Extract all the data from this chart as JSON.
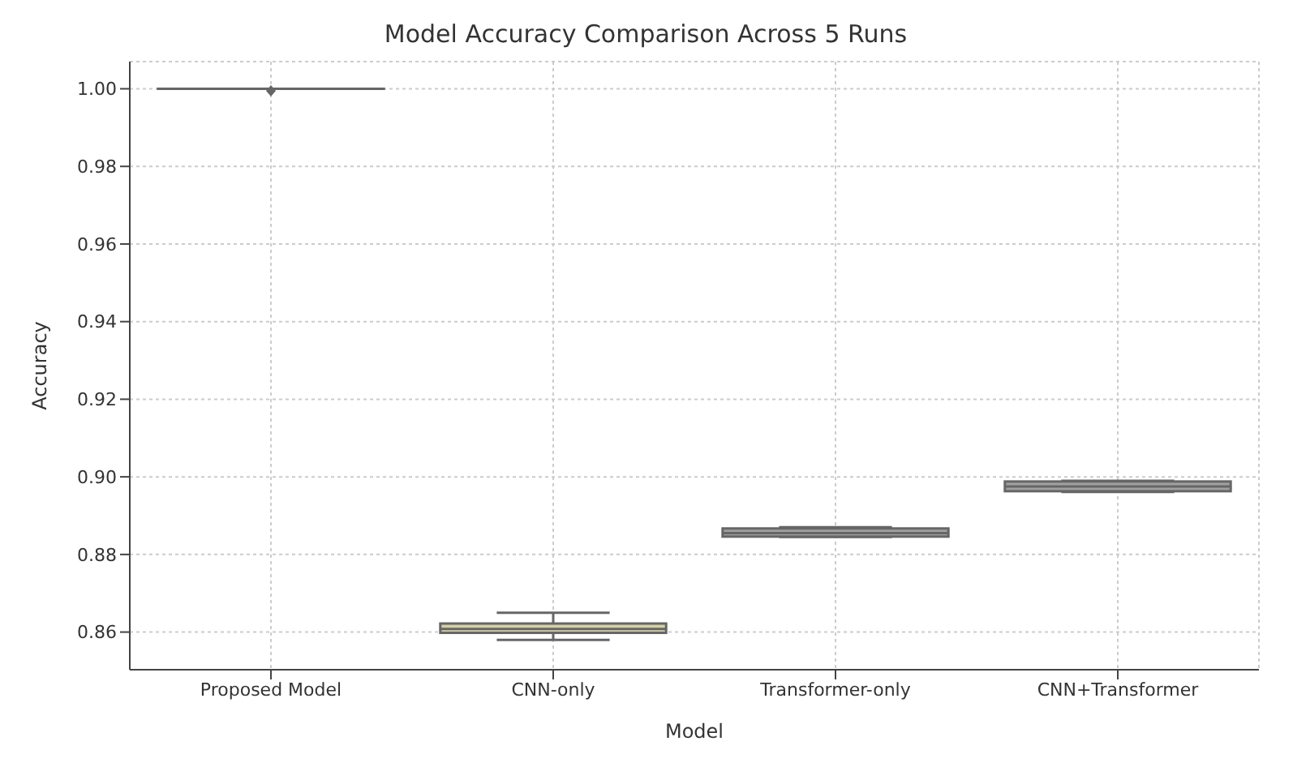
{
  "chart_data": {
    "type": "box",
    "title": "Model Accuracy Comparison Across 5 Runs",
    "xlabel": "Model",
    "ylabel": "Accuracy",
    "categories": [
      "Proposed Model",
      "CNN-only",
      "Transformer-only",
      "CNN+Transformer"
    ],
    "boxes": [
      {
        "low": 1.0,
        "q1": 1.0,
        "median": 1.0,
        "q3": 1.0,
        "high": 1.0,
        "outliers": [
          0.9995
        ]
      },
      {
        "low": 0.858,
        "q1": 0.8598,
        "median": 0.8608,
        "q3": 0.8622,
        "high": 0.865
      },
      {
        "low": 0.8845,
        "q1": 0.8846,
        "median": 0.8855,
        "q3": 0.8867,
        "high": 0.887
      },
      {
        "low": 0.8961,
        "q1": 0.8963,
        "median": 0.8975,
        "q3": 0.8988,
        "high": 0.899
      }
    ],
    "colors": [
      "#8a8a8a",
      "#d4d0a4",
      "#a0a0a0",
      "#a0a0a0"
    ],
    "ylim": [
      0.8503,
      1.007
    ],
    "yticks": [
      0.86,
      0.88,
      {
        "value": 0.9,
        "label": "0.90"
      },
      0.92,
      0.94,
      0.96,
      0.98,
      {
        "value": 1.0,
        "label": "1.00"
      }
    ],
    "grid": true
  }
}
